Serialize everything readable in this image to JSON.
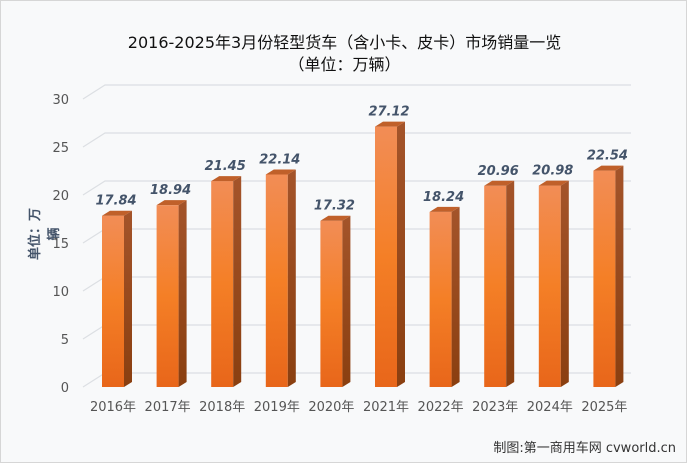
{
  "chart_data": {
    "type": "bar",
    "title": "2016-2025年3月份轻型货车（含小卡、皮卡）市场销量一览",
    "subtitle": "（单位：万辆）",
    "xlabel": "",
    "ylabel": "单位：万辆",
    "categories": [
      "2016年",
      "2017年",
      "2018年",
      "2019年",
      "2020年",
      "2021年",
      "2022年",
      "2023年",
      "2024年",
      "2025年"
    ],
    "values": [
      17.84,
      18.94,
      21.45,
      22.14,
      17.32,
      27.12,
      18.24,
      20.96,
      20.98,
      22.54
    ],
    "data_labels": [
      "17.84",
      "18.94",
      "21.45",
      "22.14",
      "17.32",
      "27.12",
      "18.24",
      "20.96",
      "20.98",
      "22.54"
    ],
    "ylim": [
      0,
      30
    ],
    "yticks": [
      "0",
      "5",
      "10",
      "15",
      "20",
      "25",
      "30"
    ],
    "grid": true,
    "style": "3d-column",
    "colors": {
      "bar": "#f07f2c",
      "bar_side": "#9c4b14",
      "bar_top": "#c0602a",
      "label": "#44546a"
    }
  },
  "credit": "制图:第一商用车网 cvworld.cn"
}
